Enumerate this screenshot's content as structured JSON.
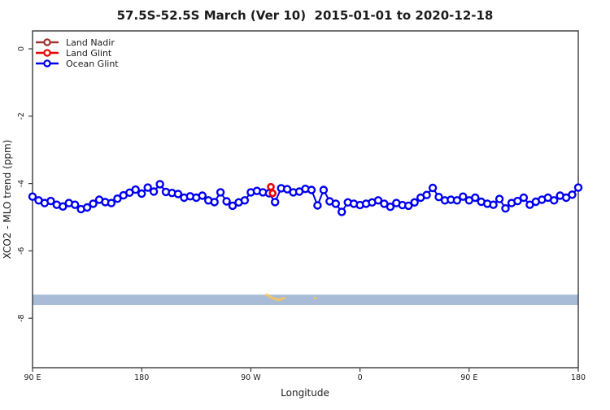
{
  "chart_data": {
    "type": "line",
    "title": "57.5S-52.5S March (Ver 10)  2015-01-01 to 2020-12-18",
    "xlabel": "Longitude",
    "ylabel": "XCO2 - MLO trend (ppm)",
    "x_axis": {
      "note": "longitude axis starts at 90E and wraps eastward through 180, 90W, 0, 90E to 180 (450 degrees total)",
      "ticks_deg_from_start": [
        0,
        90,
        180,
        270,
        360,
        450
      ],
      "tick_labels": [
        "90 E",
        "180",
        "90 W",
        "0",
        "90 E",
        "180"
      ]
    },
    "y_axis": {
      "ticks": [
        0,
        -2,
        -4,
        -6,
        -8
      ],
      "tick_labels": [
        "0",
        "-2",
        "-4",
        "-6",
        "-8"
      ],
      "range": [
        -9.5,
        0.55
      ],
      "grid": false
    },
    "legend_position": "top-left",
    "series": [
      {
        "name": "Land Nadir",
        "color": "#a03232",
        "marker": "open-circle",
        "deg": [],
        "values": []
      },
      {
        "name": "Land Glint",
        "color": "#ee0000",
        "marker": "open-circle",
        "deg": [
          196.5,
          198
        ],
        "lon": [
          -73.5,
          -72
        ],
        "values": [
          -4.1,
          -4.29
        ]
      },
      {
        "name": "Ocean Glint",
        "color": "#0000ee",
        "marker": "open-circle",
        "deg_start": 0,
        "deg_step": 5,
        "lon": [
          90,
          95,
          100,
          105,
          110,
          115,
          120,
          125,
          130,
          135,
          140,
          145,
          150,
          155,
          160,
          165,
          170,
          175,
          180,
          -175,
          -170,
          -165,
          -160,
          -155,
          -150,
          -145,
          -140,
          -135,
          -130,
          -125,
          -120,
          -115,
          -110,
          -105,
          -100,
          -95,
          -90,
          -85,
          -80,
          -75,
          -70,
          -65,
          -60,
          -55,
          -50,
          -45,
          -40,
          -35,
          -30,
          -25,
          -20,
          -15,
          -10,
          -5,
          0,
          5,
          10,
          15,
          20,
          25,
          30,
          35,
          40,
          45,
          50,
          55,
          60,
          65,
          70,
          75,
          80,
          85,
          90,
          95,
          100,
          105,
          110,
          115,
          120,
          125,
          130,
          135,
          140,
          145,
          150,
          155,
          160,
          165,
          170,
          175,
          180
        ],
        "values": [
          -4.39,
          -4.5,
          -4.58,
          -4.52,
          -4.63,
          -4.68,
          -4.58,
          -4.63,
          -4.76,
          -4.71,
          -4.6,
          -4.48,
          -4.55,
          -4.58,
          -4.45,
          -4.35,
          -4.27,
          -4.18,
          -4.3,
          -4.12,
          -4.24,
          -4.02,
          -4.25,
          -4.28,
          -4.31,
          -4.42,
          -4.38,
          -4.42,
          -4.36,
          -4.5,
          -4.55,
          -4.26,
          -4.53,
          -4.66,
          -4.56,
          -4.5,
          -4.26,
          -4.22,
          -4.26,
          -4.29,
          -4.55,
          -4.14,
          -4.17,
          -4.26,
          -4.24,
          -4.16,
          -4.19,
          -4.65,
          -4.19,
          -4.53,
          -4.6,
          -4.84,
          -4.56,
          -4.6,
          -4.64,
          -4.6,
          -4.56,
          -4.5,
          -4.6,
          -4.69,
          -4.58,
          -4.64,
          -4.66,
          -4.56,
          -4.42,
          -4.34,
          -4.13,
          -4.4,
          -4.5,
          -4.48,
          -4.5,
          -4.39,
          -4.5,
          -4.42,
          -4.54,
          -4.6,
          -4.63,
          -4.46,
          -4.74,
          -4.58,
          -4.52,
          -4.42,
          -4.63,
          -4.54,
          -4.48,
          -4.42,
          -4.5,
          -4.36,
          -4.42,
          -4.33,
          -4.12
        ]
      }
    ],
    "band": {
      "color": "#a8bcd8",
      "value_top": -7.3,
      "value_bottom": -7.61,
      "full_width": true
    },
    "land_elevation_dots": {
      "color": "#f2c463",
      "deg": [
        193,
        195,
        196.5,
        198,
        199.5,
        201,
        202.5,
        204,
        205.5,
        207.5,
        233
      ],
      "values": [
        -7.31,
        -7.34,
        -7.37,
        -7.4,
        -7.42,
        -7.44,
        -7.46,
        -7.45,
        -7.42,
        -7.4,
        -7.4
      ]
    }
  }
}
